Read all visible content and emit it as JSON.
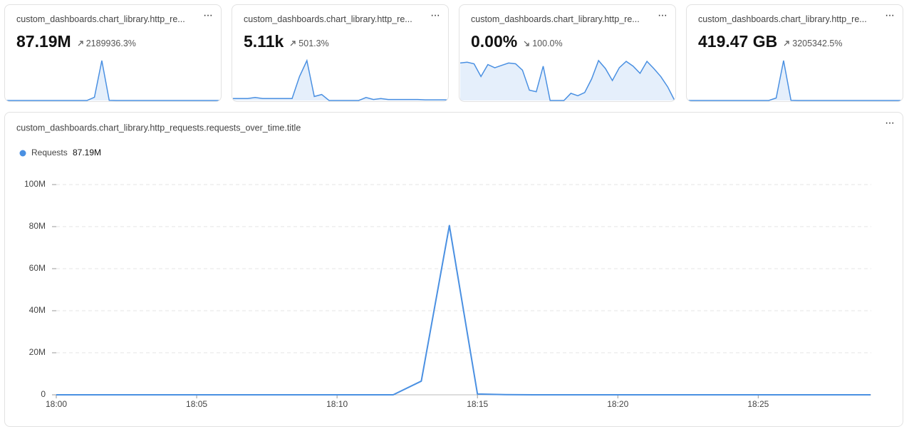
{
  "cards": [
    {
      "title": "custom_dashboards.chart_library.http_re...",
      "value": "87.19M",
      "change": "2189936.3%",
      "direction": "up",
      "sparkline": {
        "type": "area",
        "color": "#4a90e2",
        "values": [
          0,
          0,
          0,
          0,
          0,
          0,
          0,
          0,
          0,
          0,
          0,
          0,
          6.5,
          80.5,
          0.4,
          0,
          0,
          0,
          0,
          0,
          0,
          0,
          0,
          0,
          0,
          0,
          0,
          0,
          0,
          0
        ]
      }
    },
    {
      "title": "custom_dashboards.chart_library.http_re...",
      "value": "5.11k",
      "change": "501.3%",
      "direction": "up",
      "sparkline": {
        "type": "area",
        "color": "#4a90e2",
        "values": [
          1,
          1,
          1,
          1.5,
          1,
          1,
          1,
          1,
          1,
          12,
          20,
          2,
          3,
          0,
          0,
          0,
          0,
          0,
          1.5,
          0.5,
          1,
          0.5,
          0.5,
          0.5,
          0.5,
          0.5,
          0.3,
          0.3,
          0.3,
          0.3
        ]
      }
    },
    {
      "title": "custom_dashboards.chart_library.http_re...",
      "value": "0.00%",
      "change": "100.0%",
      "direction": "down",
      "sparkline": {
        "type": "area",
        "color": "#4a90e2",
        "values": [
          47,
          48,
          46,
          30,
          45,
          41,
          44,
          47,
          46,
          38,
          13,
          11,
          43,
          0,
          0,
          0,
          9,
          6,
          10,
          27,
          50,
          40,
          25,
          41,
          49,
          43,
          34,
          49,
          40,
          30,
          17,
          0
        ]
      }
    },
    {
      "title": "custom_dashboards.chart_library.http_re...",
      "value": "419.47 GB",
      "change": "3205342.5%",
      "direction": "up",
      "sparkline": {
        "type": "area",
        "color": "#4a90e2",
        "values": [
          0,
          0,
          0,
          0,
          0,
          0,
          0,
          0,
          0,
          0,
          0,
          0,
          4,
          64,
          0.3,
          0,
          0,
          0,
          0,
          0,
          0,
          0,
          0,
          0,
          0,
          0,
          0,
          0,
          0,
          0
        ]
      }
    }
  ],
  "chart_data": {
    "type": "line",
    "title": "custom_dashboards.chart_library.http_requests.requests_over_time.title",
    "x": [
      "18:00",
      "18:01",
      "18:02",
      "18:03",
      "18:04",
      "18:05",
      "18:06",
      "18:07",
      "18:08",
      "18:09",
      "18:10",
      "18:11",
      "18:12",
      "18:13",
      "18:14",
      "18:15",
      "18:16",
      "18:17",
      "18:18",
      "18:19",
      "18:20",
      "18:21",
      "18:22",
      "18:23",
      "18:24",
      "18:25",
      "18:26",
      "18:27",
      "18:28",
      "18:29"
    ],
    "series": [
      {
        "name": "Requests",
        "total": "87.19M",
        "color": "#4a90e2",
        "values": [
          0,
          0,
          0,
          0,
          0,
          0,
          0,
          0,
          0,
          0,
          0,
          0,
          0,
          6500000,
          80500000,
          400000,
          100000,
          0,
          0,
          0,
          0,
          0,
          0,
          0,
          0,
          0,
          0,
          0,
          0,
          0
        ]
      }
    ],
    "xticks": [
      "18:00",
      "18:05",
      "18:10",
      "18:15",
      "18:20",
      "18:25"
    ],
    "ylim": [
      0,
      100000000
    ],
    "yticks": [
      0,
      {
        "value": 20000000,
        "label": "20M"
      },
      {
        "value": 40000000,
        "label": "40M"
      },
      {
        "value": 60000000,
        "label": "60M"
      },
      {
        "value": 80000000,
        "label": "80M"
      },
      {
        "value": 100000000,
        "label": "100M"
      }
    ],
    "grid": true
  }
}
